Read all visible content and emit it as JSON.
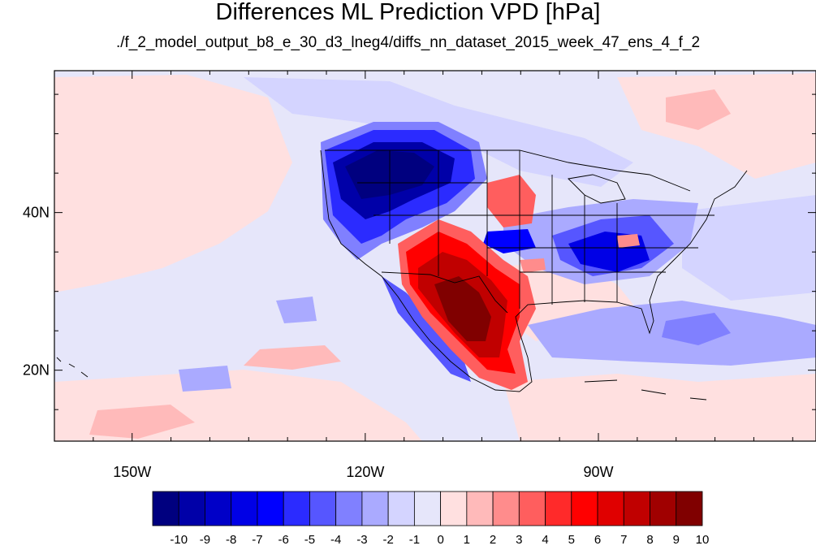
{
  "title": "Differences ML Prediction VPD [hPa]",
  "subtitle": "./f_2_model_output_b8_e_30_d3_lneg4/diffs_nn_dataset_2015_week_47_ens_4_f_2",
  "map": {
    "lon_range": [
      -160,
      -62
    ],
    "lat_range": [
      11,
      58
    ],
    "lon_ticks": [
      {
        "value": -150,
        "label": "150W"
      },
      {
        "value": -120,
        "label": "120W"
      },
      {
        "value": -90,
        "label": "90W"
      }
    ],
    "lat_ticks": [
      {
        "value": 40,
        "label": "40N"
      },
      {
        "value": 20,
        "label": "20N"
      }
    ],
    "background_color": "#e6e6fa"
  },
  "colorbar": {
    "labels": [
      "-10",
      "-9",
      "-8",
      "-7",
      "-6",
      "-5",
      "-4",
      "-3",
      "-2",
      "-1",
      "0",
      "1",
      "2",
      "3",
      "4",
      "5",
      "6",
      "7",
      "8",
      "9",
      "10"
    ],
    "colors": [
      "#00007f",
      "#0000a8",
      "#0000c8",
      "#0000e6",
      "#0000ff",
      "#2b2bff",
      "#5656ff",
      "#8080ff",
      "#aaaaff",
      "#d4d4ff",
      "#e6e6fa",
      "#ffe0e0",
      "#ffbaba",
      "#ff8c8c",
      "#ff5e5e",
      "#ff2a2a",
      "#ff0000",
      "#e00000",
      "#c00000",
      "#a00000",
      "#800000"
    ]
  }
}
